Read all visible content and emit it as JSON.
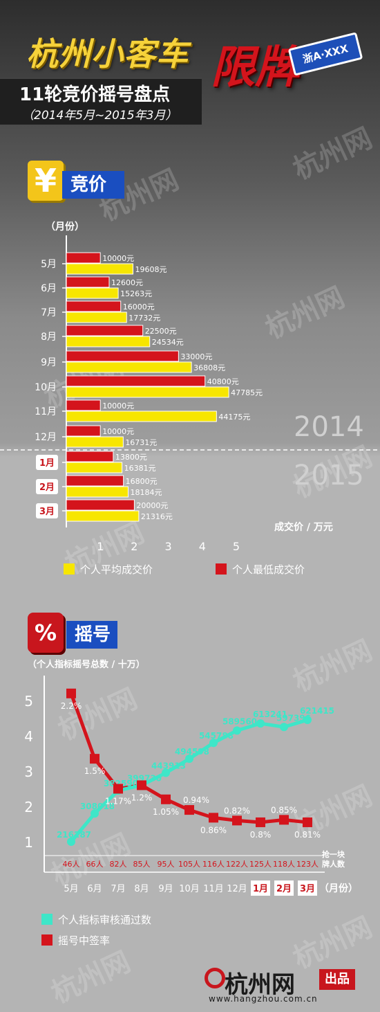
{
  "header": {
    "title_main": "杭州小客车",
    "title_limit": "限牌",
    "plate_text": "浙A·XXX",
    "subtitle": "11轮竞价摇号盘点",
    "date_range": "（2014年5月~2015年3月）"
  },
  "watermark": "杭州网",
  "section_bid": {
    "title": "竞价",
    "icon": "yen-icon",
    "accent": "#f3c51a",
    "header_color": "#1a4ec0"
  },
  "section_lottery": {
    "title": "摇号",
    "icon": "percent-dice-icon",
    "accent": "#c8161d",
    "header_color": "#1a4ec0"
  },
  "footer": {
    "brand": "杭州网",
    "badge": "出品",
    "url": "www.hangzhou.com.cn"
  },
  "chart_data": [
    {
      "type": "bar",
      "orientation": "horizontal",
      "y_axis_title": "（月份）",
      "x_axis_title": "成交价 / 万元",
      "xlim": [
        0,
        5
      ],
      "xticks": [
        1,
        2,
        3,
        4,
        5
      ],
      "categories": [
        "5月",
        "6月",
        "7月",
        "8月",
        "9月",
        "10月",
        "11月",
        "12月",
        "1月",
        "2月",
        "3月"
      ],
      "highlight_categories": [
        "1月",
        "2月",
        "3月"
      ],
      "year_labels": [
        "2014",
        "2015"
      ],
      "series": [
        {
          "name": "个人最低成交价",
          "color": "#d4141c",
          "values": [
            10000,
            12600,
            16000,
            22500,
            33000,
            40800,
            10000,
            10000,
            13800,
            16800,
            20000
          ],
          "labels": [
            "10000元",
            "12600元",
            "16000元",
            "22500元",
            "33000元",
            "40800元",
            "10000元",
            "10000元",
            "13800元",
            "16800元",
            "20000元"
          ]
        },
        {
          "name": "个人平均成交价",
          "color": "#f7e600",
          "values": [
            19608,
            15263,
            17732,
            24534,
            36808,
            47785,
            44175,
            16731,
            16381,
            18184,
            21316
          ],
          "labels": [
            "19608元",
            "15263元",
            "17732元",
            "24534元",
            "36808元",
            "47785元",
            "44175元",
            "16731元",
            "16381元",
            "18184元",
            "21316元"
          ]
        }
      ],
      "legend": [
        {
          "name": "个人平均成交价",
          "color": "#f7e600"
        },
        {
          "name": "个人最低成交价",
          "color": "#d4141c"
        }
      ]
    },
    {
      "type": "line",
      "y_axis_title": "（个人指标摇号总数 / 十万）",
      "x_axis_title": "（月份）",
      "ylim": [
        0,
        5.5
      ],
      "yticks": [
        1,
        2,
        3,
        4,
        5
      ],
      "categories": [
        "5月",
        "6月",
        "7月",
        "8月",
        "9月",
        "10月",
        "11月",
        "12月",
        "1月",
        "2月",
        "3月"
      ],
      "highlight_categories": [
        "1月",
        "2月",
        "3月"
      ],
      "series": [
        {
          "name": "个人指标审核通过数",
          "color": "#3ee6c8",
          "marker": "circle",
          "values": [
            216287,
            308018,
            382590,
            399730,
            443913,
            494598,
            545788,
            589560,
            613241,
            597396,
            621415
          ],
          "labels": [
            "216287",
            "308018",
            "382590",
            "399730",
            "443913",
            "494598",
            "545788",
            "589560",
            "613241",
            "597396",
            "621415"
          ],
          "plot_values": [
            1.0,
            1.8,
            2.45,
            2.6,
            2.95,
            3.35,
            3.8,
            4.15,
            4.35,
            4.25,
            4.45
          ]
        },
        {
          "name": "摇号中签率",
          "color": "#d4141c",
          "marker": "square",
          "values": [
            2.2,
            1.5,
            1.17,
            1.2,
            1.05,
            0.94,
            0.86,
            0.82,
            0.8,
            0.85,
            0.81
          ],
          "labels": [
            "2.2%",
            "1.5%",
            "1.17%",
            "1.2%",
            "1.05%",
            "0.94%",
            "0.86%",
            "0.82%",
            "0.8%",
            "0.85%",
            "0.81%"
          ],
          "plot_values": [
            5.2,
            3.35,
            2.5,
            2.6,
            2.2,
            1.9,
            1.68,
            1.6,
            1.55,
            1.62,
            1.55
          ]
        }
      ],
      "plates_per_car": {
        "title": "抢一块牌人数",
        "values": [
          "46人",
          "66人",
          "82人",
          "85人",
          "95人",
          "105人",
          "116人",
          "122人",
          "125人",
          "118人",
          "123人"
        ],
        "color": "#d4141c"
      },
      "legend": [
        {
          "name": "个人指标审核通过数",
          "color": "#3ee6c8"
        },
        {
          "name": "摇号中签率",
          "color": "#d4141c"
        }
      ]
    }
  ]
}
